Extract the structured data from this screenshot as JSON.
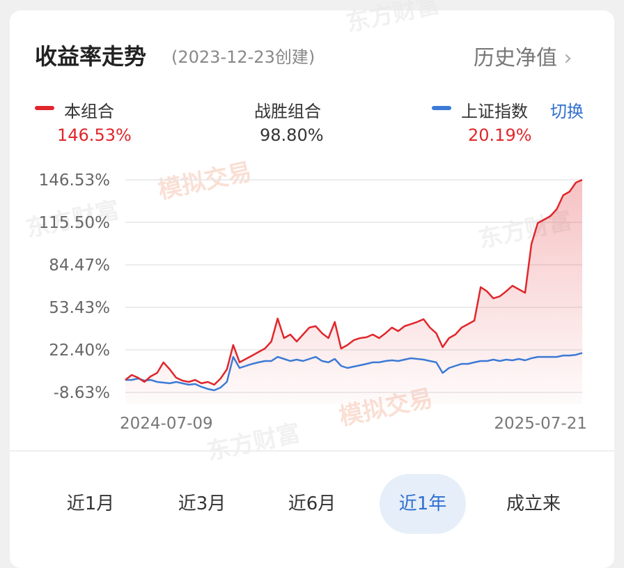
{
  "header": {
    "title": "收益率走势",
    "subtitle": "(2023-12-23创建)",
    "link": "历史净值"
  },
  "stats": {
    "portfolio": {
      "value": "146.53%"
    },
    "beat": {
      "label": "战胜组合",
      "value": "98.80%"
    },
    "index": {
      "value": "20.19%",
      "switch": "切换"
    }
  },
  "watermarks": [
    "东方财富",
    "模拟交易"
  ],
  "chart_data": {
    "type": "line",
    "categories": [
      "2024-07-09",
      null,
      null,
      null,
      null,
      null,
      null,
      null,
      null,
      null,
      null,
      null,
      null,
      null,
      null,
      null,
      null,
      null,
      null,
      null,
      null,
      null,
      null,
      null,
      null,
      null,
      null,
      null,
      null,
      null,
      null,
      null,
      null,
      null,
      null,
      null,
      null,
      null,
      null,
      null,
      null,
      null,
      null,
      null,
      null,
      null,
      null,
      null,
      null,
      null,
      null,
      null,
      null,
      null,
      null,
      null,
      null,
      null,
      null,
      null,
      null,
      null,
      null,
      null,
      null,
      null,
      null,
      null,
      null,
      null,
      null,
      null,
      "2025-07-21"
    ],
    "series": [
      {
        "name": "本组合",
        "color": "#e0262b",
        "values": [
          0.5,
          4.1,
          2.1,
          -1,
          3.1,
          5.6,
          13.3,
          8.2,
          2.1,
          0,
          -1,
          0.5,
          -2,
          -1,
          -3,
          1.5,
          8.2,
          26,
          13.3,
          15.8,
          18.3,
          20.9,
          23.4,
          28.5,
          45.3,
          31,
          33.6,
          28.5,
          33.6,
          38.7,
          39.7,
          34.6,
          31,
          42.8,
          23.4,
          26,
          29.5,
          31,
          31.6,
          33.6,
          31,
          34.6,
          38.7,
          36.1,
          39.7,
          41.2,
          42.8,
          44.8,
          38.7,
          34.6,
          24.4,
          31,
          33.6,
          38.7,
          41.2,
          43.8,
          68.2,
          65.1,
          60,
          61.5,
          65.1,
          69.2,
          66.6,
          64.1,
          99.7,
          115,
          117.5,
          120.1,
          125.2,
          135.3,
          137.9,
          144.5,
          146.53
        ]
      },
      {
        "name": "上证指数",
        "color": "#3b7ad6",
        "values": [
          0.5,
          0.5,
          1.5,
          0,
          0.5,
          -1,
          -1.5,
          -2,
          -1,
          -2,
          -3,
          -2.5,
          -4.6,
          -6.1,
          -7.1,
          -5.1,
          -1,
          17.3,
          9.2,
          10.7,
          12.2,
          13.3,
          14.3,
          14.3,
          17.3,
          15.8,
          14.3,
          15.3,
          14.3,
          15.8,
          17.3,
          14.3,
          13.3,
          15.8,
          10.7,
          9.2,
          10.2,
          11.2,
          12.2,
          13.3,
          13.3,
          14.3,
          14.8,
          14.3,
          15.3,
          16.3,
          15.8,
          15.3,
          14.3,
          13.3,
          5.6,
          9.2,
          10.7,
          12.2,
          12.2,
          13.3,
          14.3,
          14.3,
          15.3,
          14.3,
          15.3,
          14.8,
          15.8,
          14.8,
          16.3,
          17.3,
          17.3,
          17.3,
          17.3,
          18.3,
          18.3,
          18.8,
          20.19
        ]
      }
    ],
    "ylim": [
      -17,
      148
    ],
    "yticks": [
      {
        "value": -8.63,
        "label": "-8.63%"
      },
      {
        "value": 22.4,
        "label": "22.40%"
      },
      {
        "value": 53.43,
        "label": "53.43%"
      },
      {
        "value": 84.47,
        "label": "84.47%"
      },
      {
        "value": 115.5,
        "label": "115.50%"
      },
      {
        "value": 146.53,
        "label": "146.53%"
      }
    ],
    "grid": true
  },
  "tabs": {
    "items": [
      "近1月",
      "近3月",
      "近6月",
      "近1年",
      "成立来"
    ],
    "selected": "近1年"
  }
}
